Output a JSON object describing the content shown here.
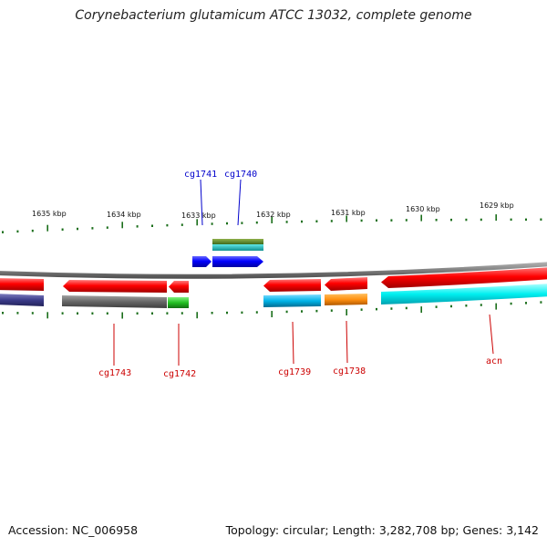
{
  "header": {
    "title": "Corynebacterium glutamicum ATCC 13032, complete genome"
  },
  "footer": {
    "accession": "Accession: NC_006958",
    "summary": "Topology: circular; Length: 3,282,708 bp; Genes: 3,142"
  },
  "scale": {
    "labels": [
      "1635 kbp",
      "1634 kbp",
      "1633 kbp",
      "1632 kbp",
      "1631 kbp",
      "1630 kbp",
      "1629 kbp"
    ]
  },
  "genes": {
    "top_labels": [
      "cg1741",
      "cg1740"
    ],
    "bottom_labels": [
      "cg1743",
      "cg1742",
      "cg1739",
      "cg1738",
      "acn"
    ]
  },
  "colors": {
    "top_label": "#0000cc",
    "bottom_label": "#cc0000",
    "tick": "#1a6e1a",
    "backbone": "#888888",
    "cds": "#ff0000",
    "blue_cds": "#0000ff"
  }
}
